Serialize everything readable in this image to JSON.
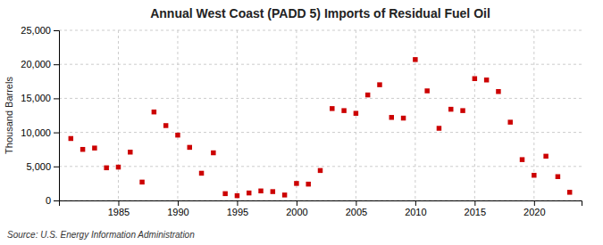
{
  "chart_data": {
    "type": "scatter",
    "title": "Annual West Coast (PADD 5) Imports of Residual Fuel Oil",
    "ylabel": "Thousand Barrels",
    "source": "Source: U.S. Energy Information Administration",
    "color": "#cc0000",
    "marker": "square",
    "x": [
      1981,
      1982,
      1983,
      1984,
      1985,
      1986,
      1987,
      1988,
      1989,
      1990,
      1991,
      1992,
      1993,
      1994,
      1995,
      1996,
      1997,
      1998,
      1999,
      2000,
      2001,
      2002,
      2003,
      2004,
      2005,
      2006,
      2007,
      2008,
      2009,
      2010,
      2011,
      2012,
      2013,
      2014,
      2015,
      2016,
      2017,
      2018,
      2019,
      2020,
      2021,
      2022,
      2023
    ],
    "values": [
      9100,
      7500,
      7700,
      4800,
      4900,
      7100,
      2700,
      13000,
      11000,
      9600,
      7800,
      4000,
      7000,
      1000,
      700,
      1100,
      1400,
      1300,
      800,
      2500,
      2400,
      4400,
      13500,
      13200,
      12800,
      15500,
      17000,
      12200,
      12100,
      20700,
      16100,
      10600,
      13400,
      13200,
      17900,
      17700,
      16000,
      11500,
      6000,
      3700,
      6500,
      3500,
      1200
    ],
    "xlim": [
      1980,
      2024
    ],
    "xticks": [
      1985,
      1990,
      1995,
      2000,
      2005,
      2010,
      2015,
      2020
    ],
    "ylim": [
      0,
      25000
    ],
    "yticks": [
      0,
      {
        "value": 5000,
        "label": "5,000"
      },
      {
        "value": 10000,
        "label": "10,000"
      },
      {
        "value": 15000,
        "label": "15,000"
      },
      {
        "value": 20000,
        "label": "20,000"
      },
      {
        "value": 25000,
        "label": "25,000"
      }
    ],
    "grid": true
  }
}
